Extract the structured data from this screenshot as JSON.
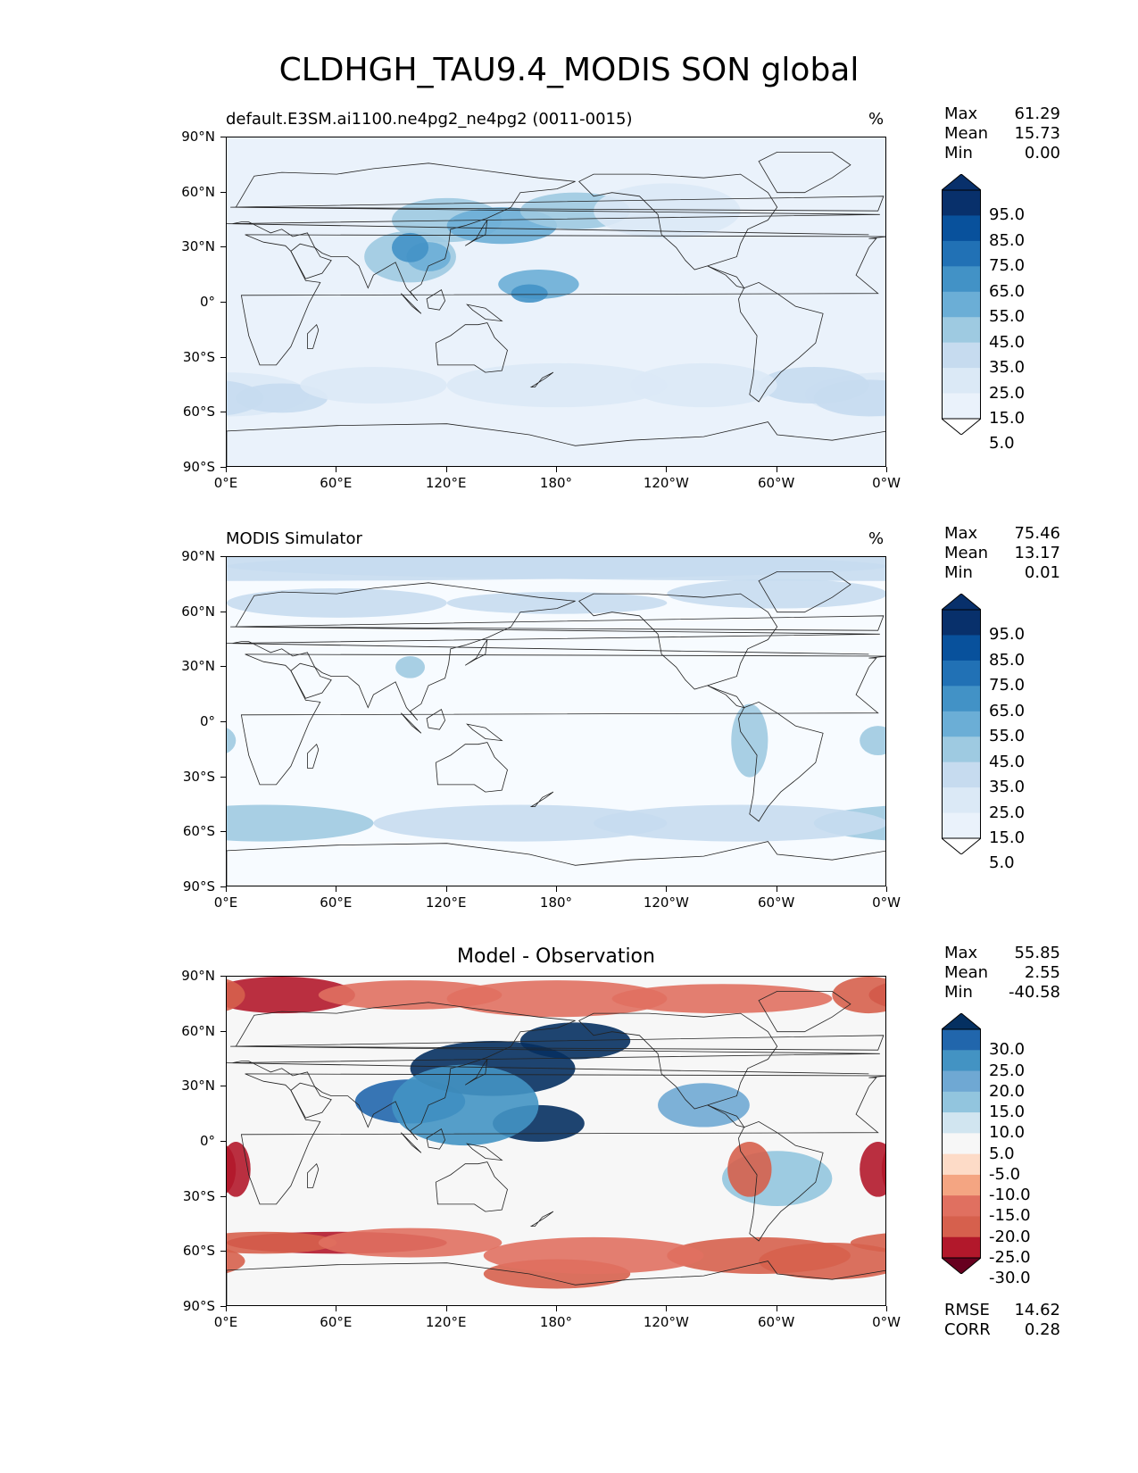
{
  "title": "CLDHGH_TAU9.4_MODIS SON global",
  "lat_ticks": [
    "90°N",
    "60°N",
    "30°N",
    "0°",
    "30°S",
    "60°S",
    "90°S"
  ],
  "lon_ticks": [
    "0°E",
    "60°E",
    "120°E",
    "180°",
    "120°W",
    "60°W",
    "0°W"
  ],
  "panels": [
    {
      "title": "default.E3SM.ai1100.ne4pg2_ne4pg2 (0011-0015)",
      "unit": "%",
      "stats": [
        {
          "label": "Max",
          "value": "61.29"
        },
        {
          "label": "Mean",
          "value": "15.73"
        },
        {
          "label": "Min",
          "value": "0.00"
        }
      ],
      "colorbar_labels": [
        "95.0",
        "85.0",
        "75.0",
        "65.0",
        "55.0",
        "45.0",
        "35.0",
        "25.0",
        "15.0",
        "5.0"
      ],
      "colorbar_colors": [
        "#08306b",
        "#08519c",
        "#2171b5",
        "#4292c6",
        "#6baed6",
        "#9ecae1",
        "#c6dbef",
        "#dbe9f6",
        "#eaf2fb",
        "#f7fbff"
      ]
    },
    {
      "title": "MODIS Simulator",
      "unit": "%",
      "stats": [
        {
          "label": "Max",
          "value": "75.46"
        },
        {
          "label": "Mean",
          "value": "13.17"
        },
        {
          "label": "Min",
          "value": "0.01"
        }
      ],
      "colorbar_labels": [
        "95.0",
        "85.0",
        "75.0",
        "65.0",
        "55.0",
        "45.0",
        "35.0",
        "25.0",
        "15.0",
        "5.0"
      ],
      "colorbar_colors": [
        "#08306b",
        "#08519c",
        "#2171b5",
        "#4292c6",
        "#6baed6",
        "#9ecae1",
        "#c6dbef",
        "#dbe9f6",
        "#eaf2fb",
        "#f7fbff"
      ]
    },
    {
      "title": "Model - Observation",
      "unit": "",
      "stats": [
        {
          "label": "Max",
          "value": "55.85"
        },
        {
          "label": "Mean",
          "value": "2.55"
        },
        {
          "label": "Min",
          "value": "-40.58"
        }
      ],
      "colorbar_labels": [
        "30.0",
        "25.0",
        "20.0",
        "15.0",
        "10.0",
        "5.0",
        "-5.0",
        "-10.0",
        "-15.0",
        "-20.0",
        "-25.0",
        "-30.0"
      ],
      "colorbar_colors": [
        "#053061",
        "#2166ac",
        "#4393c3",
        "#6fa8d3",
        "#92c5de",
        "#d1e5f0",
        "#f7f7f7",
        "#fddbc7",
        "#f4a582",
        "#e07060",
        "#d6604d",
        "#b2182b",
        "#67001f"
      ],
      "extra_stats": [
        {
          "label": "RMSE",
          "value": "14.62"
        },
        {
          "label": "CORR",
          "value": "0.28"
        }
      ]
    }
  ]
}
